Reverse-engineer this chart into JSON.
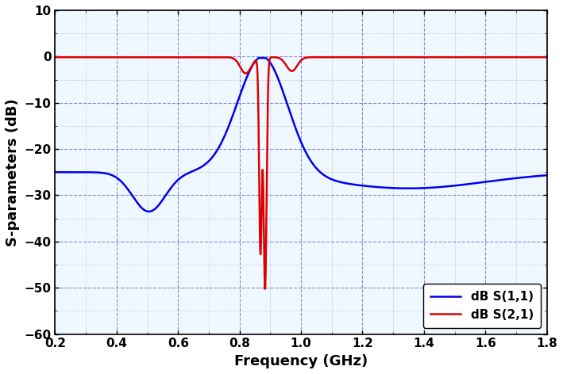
{
  "title": "",
  "xlabel": "Frequency (GHz)",
  "ylabel": "S-parameters (dB)",
  "xlim": [
    0.2,
    1.8
  ],
  "ylim": [
    -60,
    10
  ],
  "xticks": [
    0.2,
    0.4,
    0.6,
    0.8,
    1.0,
    1.2,
    1.4,
    1.6,
    1.8
  ],
  "yticks": [
    -60,
    -50,
    -40,
    -30,
    -20,
    -10,
    0,
    10
  ],
  "grid_color": "#0000bb",
  "grid_linestyle": "--",
  "grid_alpha": 0.45,
  "s11_color": "#0000ee",
  "s21_color": "#dd0000",
  "legend_labels": [
    "dB S(1,1)",
    "dB S(2,1)"
  ],
  "legend_loc": "lower right",
  "line_width": 1.8,
  "background_color": "#ffffff",
  "plot_bg_color": "#f0f8ff",
  "xlabel_fontsize": 13,
  "ylabel_fontsize": 13,
  "tick_fontsize": 11,
  "legend_fontsize": 11
}
